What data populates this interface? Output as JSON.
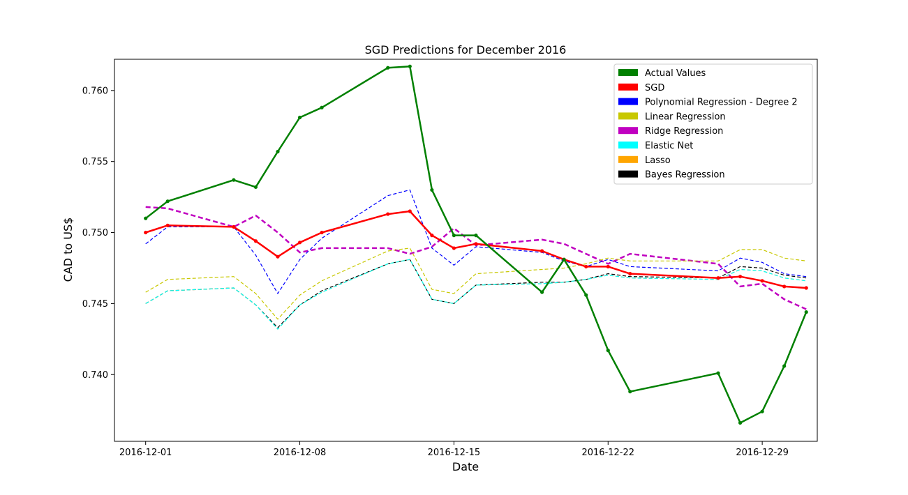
{
  "chart_data": {
    "type": "line",
    "title": "SGD Predictions for December 2016",
    "xlabel": "Date",
    "ylabel": "CAD to US$",
    "x_ticks": [
      "2016-12-01",
      "2016-12-08",
      "2016-12-15",
      "2016-12-22",
      "2016-12-29"
    ],
    "y_ticks": [
      "0.740",
      "0.745",
      "0.750",
      "0.755",
      "0.760"
    ],
    "xlim": [
      "2016-11-29 14:00",
      "2016-12-31 12:00"
    ],
    "ylim": [
      0.7353,
      0.7622
    ],
    "x": [
      "2016-12-01",
      "2016-12-02",
      "2016-12-05",
      "2016-12-06",
      "2016-12-07",
      "2016-12-08",
      "2016-12-09",
      "2016-12-12",
      "2016-12-13",
      "2016-12-14",
      "2016-12-15",
      "2016-12-16",
      "2016-12-19",
      "2016-12-20",
      "2016-12-21",
      "2016-12-22",
      "2016-12-23",
      "2016-12-27",
      "2016-12-28",
      "2016-12-29",
      "2016-12-30",
      "2016-12-31"
    ],
    "legend_position": "top-right",
    "series": [
      {
        "name": "Actual Values",
        "color": "#008000",
        "style": "solid-markers",
        "values": [
          0.751,
          0.7522,
          0.7537,
          0.7532,
          0.7557,
          0.7581,
          0.7588,
          0.7616,
          0.7617,
          0.753,
          0.7498,
          0.7498,
          0.7458,
          0.7481,
          0.7456,
          0.7417,
          0.7388,
          0.7401,
          0.7366,
          0.7374,
          0.7406,
          0.7444
        ]
      },
      {
        "name": "SGD",
        "color": "#ff0000",
        "style": "solid-markers",
        "values": [
          0.75,
          0.7505,
          0.7504,
          0.7494,
          0.7483,
          0.7493,
          0.75,
          0.7513,
          0.7515,
          0.7498,
          0.7489,
          0.7492,
          0.7487,
          0.7481,
          0.7476,
          0.7476,
          0.7471,
          0.7468,
          0.7469,
          0.7466,
          0.7462,
          0.7461
        ]
      },
      {
        "name": "Polynomial Regression - Degree 2",
        "color": "#0000ff",
        "style": "dashed",
        "values": [
          0.7492,
          0.7504,
          0.7504,
          0.7484,
          0.7457,
          0.7481,
          0.7496,
          0.7526,
          0.753,
          0.7489,
          0.7477,
          0.749,
          0.7486,
          0.748,
          0.7476,
          0.7481,
          0.7476,
          0.7473,
          0.7482,
          0.7479,
          0.7471,
          0.7469
        ]
      },
      {
        "name": "Linear Regression",
        "color": "#c8c800",
        "style": "dashed",
        "values": [
          0.7458,
          0.7467,
          0.7469,
          0.7457,
          0.7439,
          0.7456,
          0.7466,
          0.7487,
          0.7489,
          0.746,
          0.7457,
          0.7471,
          0.7474,
          0.7475,
          0.7478,
          0.7482,
          0.748,
          0.748,
          0.7488,
          0.7488,
          0.7482,
          0.748
        ]
      },
      {
        "name": "Ridge Regression",
        "color": "#c000c0",
        "style": "dashed-thick",
        "values": [
          0.7518,
          0.7517,
          0.7504,
          0.7512,
          0.75,
          0.7486,
          0.7489,
          0.7489,
          0.7485,
          0.749,
          0.7503,
          0.7491,
          0.7495,
          0.7492,
          0.7485,
          0.7478,
          0.7485,
          0.7478,
          0.7462,
          0.7464,
          0.7453,
          0.7446
        ]
      },
      {
        "name": "Elastic Net",
        "color": "#00ffff",
        "style": "dashed",
        "values": [
          0.745,
          0.7459,
          0.7461,
          0.7449,
          0.7432,
          0.7449,
          0.7458,
          0.7478,
          0.7481,
          0.7453,
          0.745,
          0.7463,
          0.7464,
          0.7465,
          0.7467,
          0.747,
          0.7468,
          0.7467,
          0.7474,
          0.7473,
          0.7468,
          0.7466
        ]
      },
      {
        "name": "Lasso",
        "color": "#ffa500",
        "style": "dashed",
        "values": [
          0.745,
          0.7459,
          0.7461,
          0.7449,
          0.7432,
          0.7449,
          0.7458,
          0.7478,
          0.7481,
          0.7453,
          0.745,
          0.7463,
          0.7464,
          0.7465,
          0.7467,
          0.747,
          0.7468,
          0.7467,
          0.7474,
          0.7473,
          0.7468,
          0.7466
        ]
      },
      {
        "name": "Bayes Regression",
        "color": "#000000",
        "style": "dashed",
        "values": [
          0.745,
          0.7459,
          0.7461,
          0.7449,
          0.7433,
          0.7449,
          0.7459,
          0.7478,
          0.7481,
          0.7453,
          0.745,
          0.7463,
          0.7465,
          0.7465,
          0.7467,
          0.7471,
          0.7469,
          0.7468,
          0.7476,
          0.7475,
          0.747,
          0.7468
        ]
      }
    ]
  }
}
